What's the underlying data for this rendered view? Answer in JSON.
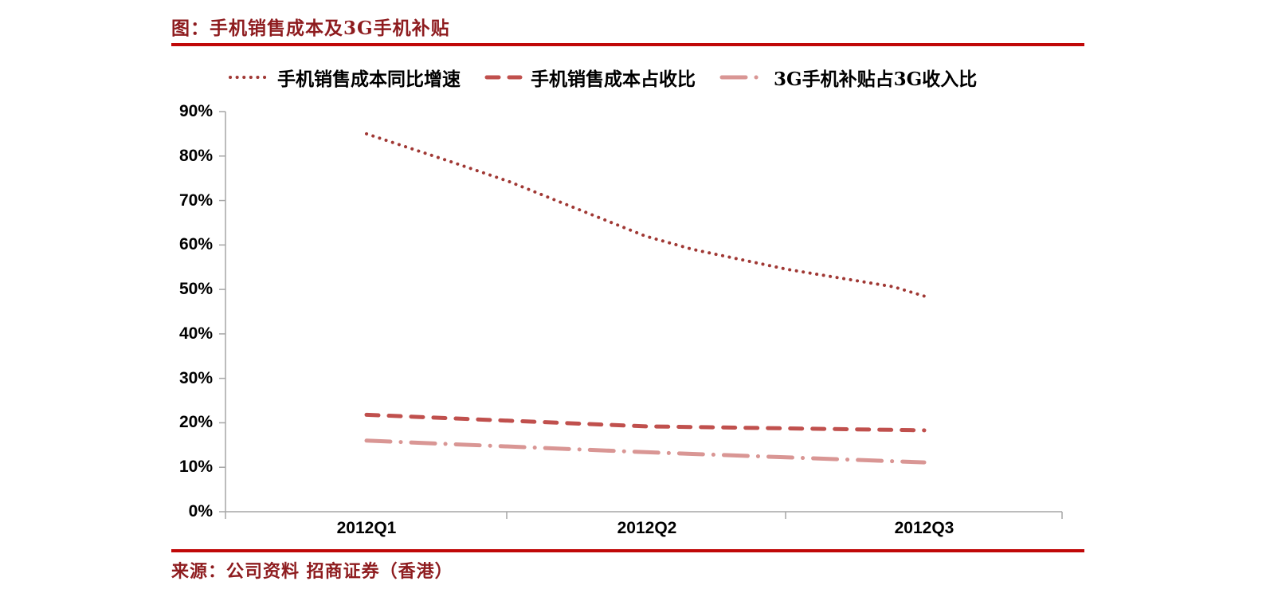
{
  "header": {
    "title": "图：手机销售成本及3G手机补贴"
  },
  "source": {
    "text": "来源：公司资料 招商证券（香港）"
  },
  "colors": {
    "title_text": "#8E1C1F",
    "separator_rule": "#C00808",
    "axis": "#A6A6A6",
    "tick_text": "#000000",
    "series_dark_red": "#A03834",
    "series_red": "#C0504D",
    "series_pink": "#D99694"
  },
  "chart_data": {
    "type": "line",
    "title": "图：手机销售成本及3G手机补贴",
    "xlabel": "",
    "ylabel": "",
    "categories": [
      "2012Q1",
      "2012Q2",
      "2012Q3"
    ],
    "y_ticks": [
      "0%",
      "10%",
      "20%",
      "30%",
      "40%",
      "50%",
      "60%",
      "70%",
      "80%",
      "90%"
    ],
    "ylim": [
      0,
      90
    ],
    "grid": false,
    "legend_position": "top",
    "series": [
      {
        "name": "手机销售成本同比增速",
        "style": "dotted",
        "color": "#A03834",
        "values": [
          85,
          62,
          48.5
        ],
        "waypoints": [
          [
            0,
            85
          ],
          [
            0.29,
            79
          ],
          [
            0.51,
            74.3
          ],
          [
            0.7,
            69.5
          ],
          [
            1,
            62
          ],
          [
            1.17,
            59
          ],
          [
            1.51,
            54.5
          ],
          [
            1.89,
            50.6
          ],
          [
            2,
            48.5
          ]
        ]
      },
      {
        "name": "手机销售成本占收比",
        "style": "dashed",
        "color": "#C0504D",
        "values": [
          21.8,
          19.2,
          18.3
        ]
      },
      {
        "name": "3G手机补贴占3G收入比",
        "style": "dashdot",
        "color": "#D99694",
        "values": [
          16,
          13.4,
          11.1
        ]
      }
    ],
    "source": "来源：公司资料 招商证券（香港）"
  }
}
